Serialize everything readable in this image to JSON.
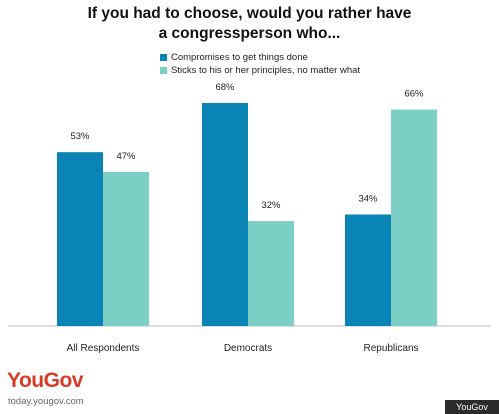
{
  "chart_data": {
    "type": "bar",
    "title_line1": "If you had to choose, would you rather have",
    "title_line2": "a congressperson who...",
    "categories": [
      "All Respondents",
      "Democrats",
      "Republicans"
    ],
    "series": [
      {
        "name": "Compromises to get things done",
        "values": [
          53,
          68,
          34
        ],
        "labels": [
          "53%",
          "68%",
          "34%"
        ],
        "color": "#0a84b5"
      },
      {
        "name": "Sticks to his or her principles, no matter what",
        "values": [
          47,
          32,
          66
        ],
        "labels": [
          "47%",
          "32%",
          "66%"
        ],
        "color": "#7ccfc5"
      }
    ],
    "ylim": [
      0,
      68
    ],
    "grid": false,
    "legend_position": "top"
  },
  "branding": {
    "logo_text": "YouGov",
    "logo_subtext": "today.yougov.com",
    "watermark": "YouGov",
    "logo_color": "#d63b27"
  }
}
